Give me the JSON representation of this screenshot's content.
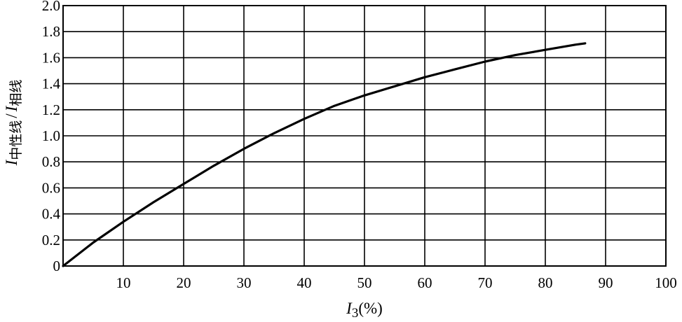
{
  "chart_data": {
    "type": "line",
    "xlabel": {
      "var": "I",
      "sub": "3",
      "unit": "(%)"
    },
    "ylabel": {
      "num_var": "I",
      "num_sub": "中性线",
      "sep": "/",
      "den_var": "I",
      "den_sub": "相线"
    },
    "xlim": [
      0,
      100
    ],
    "ylim": [
      0,
      2.0
    ],
    "x_ticks": [
      10,
      20,
      30,
      40,
      50,
      60,
      70,
      80,
      90,
      100
    ],
    "y_ticks": [
      0,
      0.2,
      0.4,
      0.6,
      0.8,
      1.0,
      1.2,
      1.4,
      1.6,
      1.8,
      2.0
    ],
    "x_tick_labels": [
      "10",
      "20",
      "30",
      "40",
      "50",
      "60",
      "70",
      "80",
      "90",
      "100"
    ],
    "y_tick_labels": [
      "0",
      "0.2",
      "0.4",
      "0.6",
      "0.8",
      "1.0",
      "1.2",
      "1.4",
      "1.6",
      "1.8",
      "2.0"
    ],
    "grid": true,
    "series": [
      {
        "x": [
          0,
          5,
          10,
          15,
          20,
          25,
          30,
          35,
          40,
          45,
          50,
          55,
          60,
          65,
          70,
          75,
          80,
          85,
          86.6
        ],
        "y": [
          0,
          0.18,
          0.34,
          0.49,
          0.63,
          0.77,
          0.9,
          1.02,
          1.13,
          1.23,
          1.31,
          1.38,
          1.45,
          1.51,
          1.57,
          1.62,
          1.66,
          1.7,
          1.71
        ]
      }
    ]
  }
}
